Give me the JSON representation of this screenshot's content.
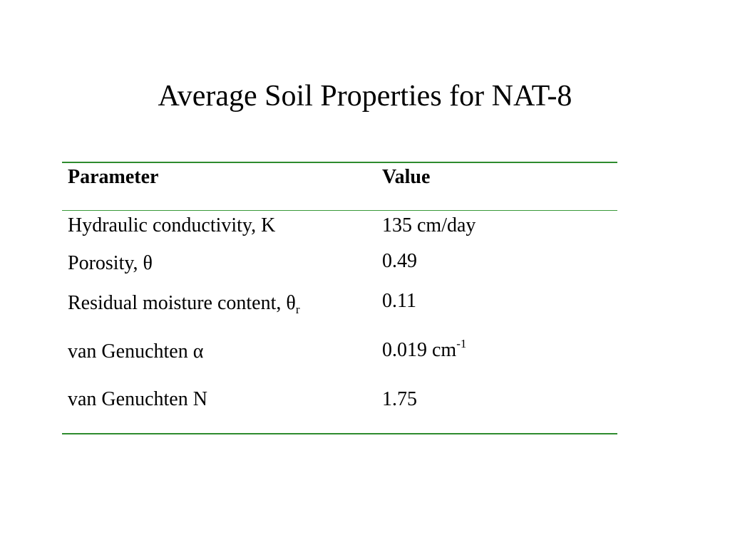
{
  "title": "Average Soil Properties for NAT-8",
  "table": {
    "headers": {
      "parameter": "Parameter",
      "value": "Value"
    },
    "rows": [
      {
        "parameter": "Hydraulic conductivity, K",
        "param_sub": "",
        "value": "135 cm/day",
        "value_sup": ""
      },
      {
        "parameter": "Porosity, θ",
        "param_sub": "",
        "value": "0.49",
        "value_sup": ""
      },
      {
        "parameter": "Residual moisture content, θ",
        "param_sub": "r",
        "value": "0.11",
        "value_sup": ""
      },
      {
        "parameter": "van Genuchten α",
        "param_sub": "",
        "value": "0.019 cm",
        "value_sup": "-1"
      },
      {
        "parameter": "van Genuchten N",
        "param_sub": "",
        "value": "1.75",
        "value_sup": ""
      }
    ]
  },
  "colors": {
    "rule": "#2e8b2e"
  }
}
